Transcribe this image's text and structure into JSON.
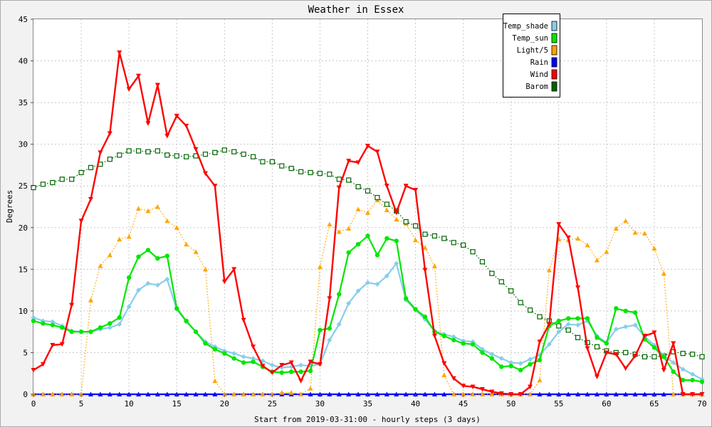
{
  "chart_data": {
    "type": "line",
    "title": "Weather in Essex",
    "xlabel": "Start from 2019-03-31:00 - hourly steps (3 days)",
    "ylabel": "Degrees",
    "xlim": [
      0,
      70
    ],
    "ylim": [
      0,
      45
    ],
    "x_ticks": [
      0,
      5,
      10,
      15,
      20,
      25,
      30,
      35,
      40,
      45,
      50,
      55,
      60,
      65,
      70
    ],
    "y_ticks": [
      0,
      5,
      10,
      15,
      20,
      25,
      30,
      35,
      40,
      45
    ],
    "grid": true,
    "legend_position": "top-right",
    "x": [
      0,
      1,
      2,
      3,
      4,
      5,
      6,
      7,
      8,
      9,
      10,
      11,
      12,
      13,
      14,
      15,
      16,
      17,
      18,
      19,
      20,
      21,
      22,
      23,
      24,
      25,
      26,
      27,
      28,
      29,
      30,
      31,
      32,
      33,
      34,
      35,
      36,
      37,
      38,
      39,
      40,
      41,
      42,
      43,
      44,
      45,
      46,
      47,
      48,
      49,
      50,
      51,
      52,
      53,
      54,
      55,
      56,
      57,
      58,
      59,
      60,
      61,
      62,
      63,
      64,
      65,
      66,
      67,
      68,
      69,
      70
    ],
    "series": [
      {
        "name": "Temp_shade",
        "color": "#87ceeb",
        "style": "solid",
        "marker": "diamond",
        "values": [
          9.2,
          8.8,
          8.7,
          8.2,
          7.6,
          7.5,
          7.5,
          7.8,
          8.0,
          8.4,
          10.5,
          12.5,
          13.3,
          13.1,
          13.8,
          10.2,
          8.7,
          7.5,
          6.3,
          5.7,
          5.2,
          4.9,
          4.5,
          4.3,
          4.0,
          3.5,
          3.2,
          3.3,
          3.5,
          3.4,
          3.6,
          6.5,
          8.4,
          10.9,
          12.4,
          13.4,
          13.2,
          14.2,
          15.7,
          11.3,
          10.1,
          9.0,
          7.6,
          7.2,
          6.9,
          6.4,
          6.3,
          5.4,
          4.8,
          4.3,
          3.8,
          3.7,
          4.2,
          4.7,
          6.0,
          7.5,
          8.4,
          8.3,
          8.8,
          7.0,
          6.2,
          7.8,
          8.1,
          8.3,
          6.9,
          5.9,
          4.6,
          3.8,
          3.0,
          2.4,
          1.8
        ]
      },
      {
        "name": "Temp_sun",
        "color": "#00e600",
        "style": "solid",
        "marker": "circle",
        "values": [
          8.8,
          8.5,
          8.3,
          8.0,
          7.5,
          7.5,
          7.5,
          8.0,
          8.5,
          9.2,
          14.0,
          16.5,
          17.3,
          16.3,
          16.6,
          10.3,
          8.8,
          7.5,
          6.1,
          5.4,
          4.9,
          4.3,
          3.8,
          3.9,
          3.3,
          2.7,
          2.6,
          2.7,
          2.7,
          2.8,
          7.7,
          7.9,
          12.0,
          17.0,
          18.0,
          19.0,
          16.7,
          18.7,
          18.4,
          11.5,
          10.2,
          9.3,
          7.5,
          7.0,
          6.5,
          6.1,
          6.0,
          5.0,
          4.3,
          3.3,
          3.4,
          2.9,
          3.6,
          4.1,
          8.2,
          8.8,
          9.1,
          9.1,
          9.1,
          6.8,
          6.1,
          10.3,
          10.0,
          9.8,
          6.6,
          5.6,
          4.5,
          2.7,
          1.7,
          1.7,
          1.5
        ]
      },
      {
        "name": "Light/5",
        "color": "#ffa500",
        "style": "dotted",
        "marker": "triangle",
        "values": [
          0,
          0,
          0,
          0,
          0,
          0,
          11.3,
          15.4,
          16.7,
          18.6,
          18.9,
          22.3,
          22.0,
          22.5,
          20.8,
          20.0,
          18.0,
          17.1,
          15.0,
          1.6,
          0,
          0,
          0,
          0,
          0,
          0,
          0.2,
          0.2,
          0,
          0.7,
          15.3,
          20.4,
          19.5,
          19.9,
          22.2,
          21.8,
          23.3,
          22.1,
          21.0,
          20.5,
          18.5,
          17.6,
          15.4,
          2.3,
          0,
          0,
          0,
          0,
          0,
          0,
          0,
          0,
          0,
          1.7,
          14.9,
          18.6,
          18.5,
          18.7,
          17.9,
          16.1,
          17.1,
          19.9,
          20.8,
          19.4,
          19.3,
          17.5,
          14.5,
          0,
          0,
          0,
          0
        ]
      },
      {
        "name": "Rain",
        "color": "#0000ff",
        "style": "solid",
        "marker": "triangle",
        "values": [
          0,
          0,
          0,
          0,
          0,
          0,
          0,
          0,
          0,
          0,
          0,
          0,
          0,
          0,
          0,
          0,
          0,
          0,
          0,
          0,
          0,
          0,
          0,
          0,
          0,
          0,
          0,
          0,
          0,
          0,
          0,
          0,
          0,
          0,
          0,
          0,
          0,
          0,
          0,
          0,
          0,
          0,
          0,
          0,
          0,
          0,
          0,
          0,
          0,
          0,
          0,
          0,
          0,
          0,
          0,
          0,
          0,
          0,
          0,
          0,
          0,
          0,
          0,
          0,
          0,
          0,
          0,
          0,
          0,
          0,
          0
        ]
      },
      {
        "name": "Wind",
        "color": "#ff0000",
        "style": "solid",
        "marker": "triangle-down",
        "values": [
          2.9,
          3.6,
          5.9,
          6.0,
          10.7,
          20.8,
          23.4,
          29.0,
          31.3,
          41.0,
          36.6,
          38.2,
          32.5,
          37.1,
          31.0,
          33.4,
          32.2,
          29.4,
          26.5,
          25.0,
          13.5,
          15.0,
          8.9,
          5.7,
          3.4,
          2.6,
          3.5,
          3.8,
          1.6,
          3.9,
          3.6,
          11.5,
          24.8,
          28.0,
          27.8,
          29.8,
          29.1,
          25.0,
          21.8,
          25.0,
          24.5,
          14.9,
          7.0,
          3.7,
          1.9,
          1.0,
          0.9,
          0.6,
          0.3,
          0.1,
          0,
          0,
          0.9,
          6.3,
          8.4,
          20.4,
          18.8,
          12.8,
          5.5,
          2.1,
          5.0,
          4.8,
          3.1,
          4.6,
          7.0,
          7.4,
          2.9,
          6.1,
          0,
          0,
          0
        ]
      },
      {
        "name": "Barom",
        "color": "#006400",
        "style": "dotted",
        "marker": "square",
        "values": [
          24.8,
          25.2,
          25.4,
          25.8,
          25.8,
          26.6,
          27.2,
          27.6,
          28.2,
          28.7,
          29.2,
          29.2,
          29.1,
          29.2,
          28.7,
          28.6,
          28.5,
          28.6,
          28.8,
          29.0,
          29.3,
          29.1,
          28.8,
          28.5,
          27.9,
          27.9,
          27.4,
          27.1,
          26.7,
          26.6,
          26.5,
          26.4,
          25.8,
          25.7,
          24.9,
          24.4,
          23.6,
          22.8,
          22.0,
          20.7,
          20.2,
          19.2,
          19.0,
          18.7,
          18.2,
          17.9,
          17.1,
          15.9,
          14.5,
          13.5,
          12.4,
          11.0,
          10.1,
          9.3,
          8.8,
          8.2,
          7.7,
          6.8,
          6.2,
          5.7,
          5.2,
          5.0,
          5.0,
          4.8,
          4.5,
          4.5,
          4.6,
          5.1,
          4.9,
          4.8,
          4.5
        ]
      }
    ]
  }
}
